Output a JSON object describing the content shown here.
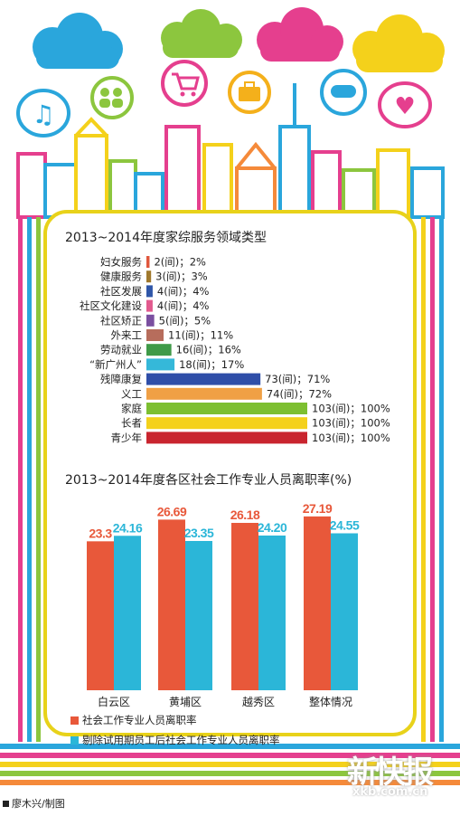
{
  "chart_data": [
    {
      "type": "bar",
      "orientation": "horizontal",
      "title": "2013~2014年度家综服务领域类型",
      "categories": [
        "妇女服务",
        "健康服务",
        "社区发展",
        "社区文化建设",
        "社区矫正",
        "外来工",
        "劳动就业",
        "“新广州人”",
        "残障康复",
        "义工",
        "家庭",
        "长者",
        "青少年"
      ],
      "values": [
        2,
        3,
        4,
        4,
        5,
        11,
        16,
        18,
        73,
        74,
        103,
        103,
        103
      ],
      "value_labels": [
        "2(间)；2%",
        "3(间)；3%",
        "4(间)；4%",
        "4(间)；4%",
        "5(间)；5%",
        "11(间)；11%",
        "16(间)；16%",
        "18(间)；17%",
        "73(间)；71%",
        "74(间)；72%",
        "103(间)；100%",
        "103(间)；100%",
        "103(间)；100%"
      ],
      "colors": [
        "#e0573d",
        "#a0792d",
        "#2f56a8",
        "#e25a8e",
        "#7a4fa0",
        "#b76d5c",
        "#3f9a48",
        "#35b8d9",
        "#2f4ea8",
        "#f0a045",
        "#7dbf31",
        "#f4d11b",
        "#c9252f"
      ]
    },
    {
      "type": "bar",
      "title": "2013~2014年度各区社会工作专业人员离职率(%)",
      "categories": [
        "白云区",
        "黄埔区",
        "越秀区",
        "整体情况"
      ],
      "series": [
        {
          "name": "社会工作专业人员离职率",
          "values": [
            23.3,
            26.69,
            26.18,
            27.19
          ],
          "labels": [
            "23.3",
            "26.69",
            "26.18",
            "27.19"
          ],
          "color": "#e8583a"
        },
        {
          "name": "剔除试用期员工后社会工作专业人员离职率",
          "values": [
            24.16,
            23.35,
            24.2,
            24.55
          ],
          "labels": [
            "24.16",
            "23.35",
            "24.20",
            "24.55"
          ],
          "color": "#2bb6d8"
        }
      ],
      "ylim": [
        0,
        30
      ]
    }
  ],
  "credit": "廖木兴/制图",
  "logo": {
    "name": "新快报",
    "url": "xkb.com.cn"
  }
}
